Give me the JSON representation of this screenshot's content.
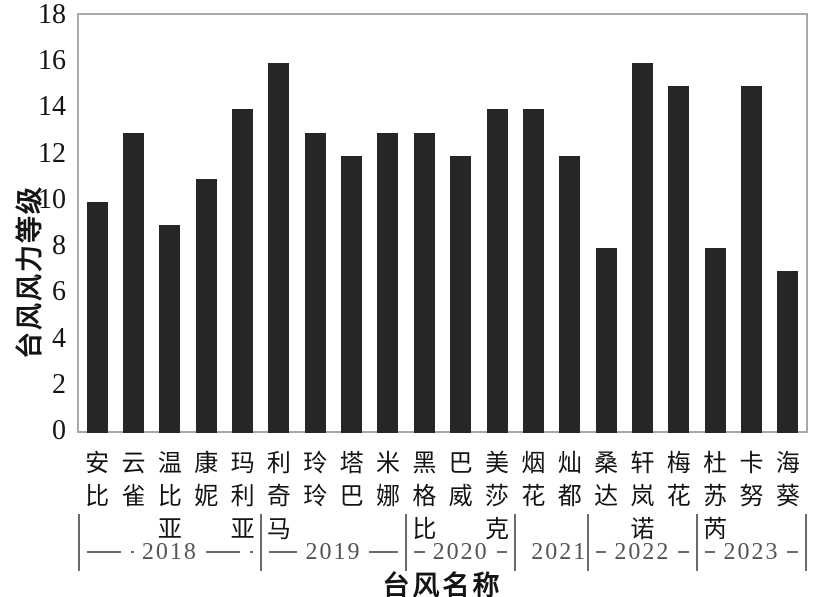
{
  "chart_data": {
    "type": "bar",
    "xlabel": "台风名称",
    "ylabel": "台风风力等级",
    "ylim": [
      0,
      18
    ],
    "ytick_step": 2,
    "yticks": [
      0,
      2,
      4,
      6,
      8,
      10,
      12,
      14,
      16,
      18
    ],
    "grid": false,
    "legend_position": "none",
    "bar_color": "#262626",
    "axis_border_color": "#a9a9a9",
    "group_label_color": "#555555",
    "categories": [
      "安比",
      "云雀",
      "温比亚",
      "康妮",
      "玛利亚",
      "利奇马",
      "玲玲",
      "塔巴",
      "米娜",
      "黑格比",
      "巴威",
      "美莎克",
      "烟花",
      "灿都",
      "桑达",
      "轩岚诺",
      "梅花",
      "杜苏芮",
      "卡努",
      "海葵"
    ],
    "values": [
      10,
      13,
      9,
      11,
      14,
      16,
      13,
      12,
      13,
      13,
      12,
      14,
      14,
      12,
      8,
      16,
      15,
      8,
      15,
      7
    ],
    "year_groups": [
      {
        "label": "2018",
        "count": 5
      },
      {
        "label": "2019",
        "count": 4
      },
      {
        "label": "2020",
        "count": 3
      },
      {
        "label": "2021",
        "count": 2
      },
      {
        "label": "2022",
        "count": 3
      },
      {
        "label": "2023",
        "count": 3
      }
    ]
  }
}
